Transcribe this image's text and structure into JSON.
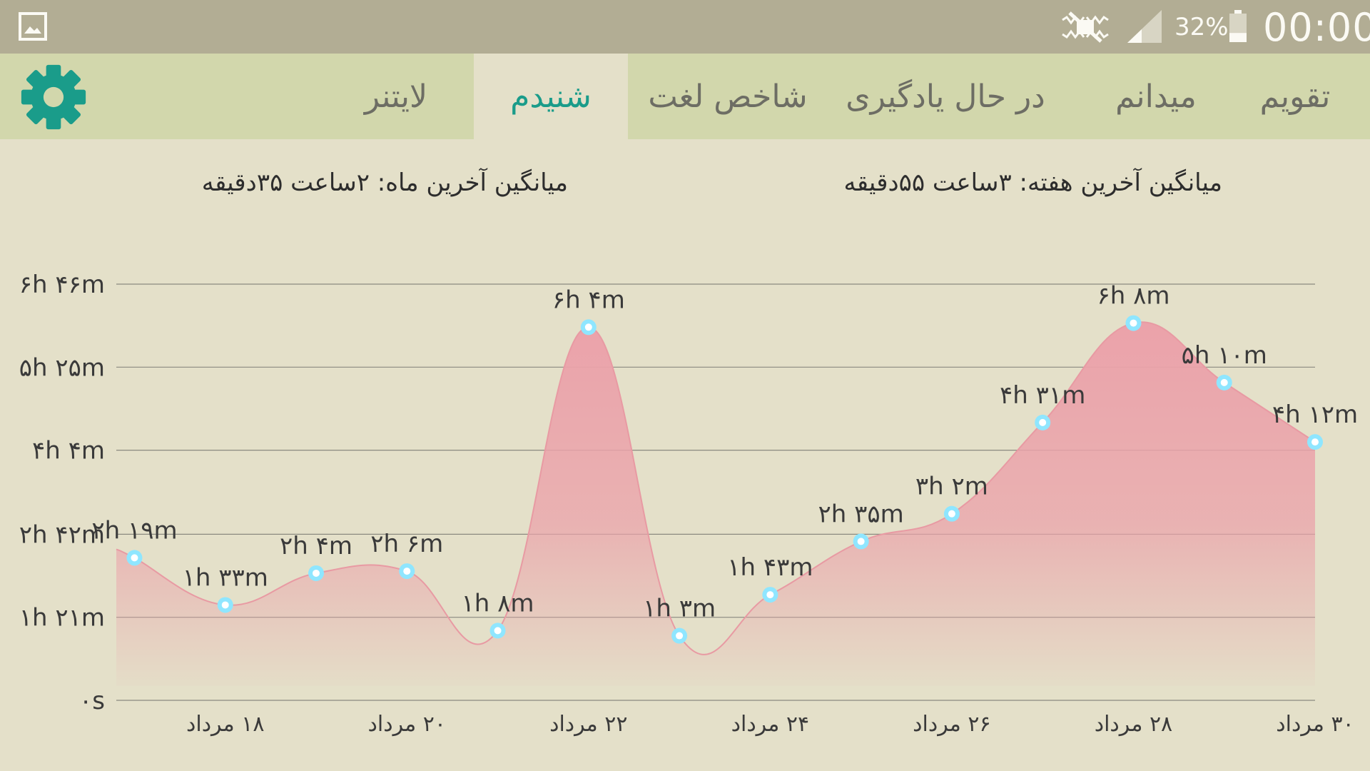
{
  "status_bar": {
    "battery_percent": "32%",
    "battery_level": 0.32,
    "clock": "00:00",
    "icons": [
      "gallery-icon",
      "mute-icon",
      "signal-icon",
      "battery-icon"
    ]
  },
  "tabs": [
    {
      "label": "تقویم",
      "active": false
    },
    {
      "label": "میدانم",
      "active": false
    },
    {
      "label": "در حال یادگیری",
      "active": false
    },
    {
      "label": "شاخص لغت",
      "active": false
    },
    {
      "label": "شنیدم",
      "active": true
    },
    {
      "label": "لایتنر",
      "active": false
    }
  ],
  "settings_icon": "gear-icon",
  "averages": {
    "week": "میانگین آخرین هفته:  ۳ساعت   ۵۵دقیقه",
    "month": "میانگین آخرین ماه:  ۲ساعت   ۳۵دقیقه"
  },
  "colors": {
    "accent": "#1a9c8a",
    "area_fill": "#eba2aa",
    "point": "#8fe6ff",
    "background": "#e4e0c9",
    "tab_bar": "#d2d7ac",
    "status_bar": "#b2ad94"
  },
  "chart_data": {
    "type": "area",
    "y_unit": "minutes",
    "ylim": [
      0,
      406
    ],
    "y_ticks": [
      {
        "value": 0,
        "label": "۰s"
      },
      {
        "value": 81,
        "label": "۱h ۲۱m"
      },
      {
        "value": 162,
        "label": "۲h ۴۲m"
      },
      {
        "value": 244,
        "label": "۴h ۴m"
      },
      {
        "value": 325,
        "label": "۵h ۲۵m"
      },
      {
        "value": 406,
        "label": "۶h ۴۶m"
      }
    ],
    "x_ticks": [
      {
        "day": 18,
        "label": "۱۸ مرداد"
      },
      {
        "day": 20,
        "label": "۲۰ مرداد"
      },
      {
        "day": 22,
        "label": "۲۲ مرداد"
      },
      {
        "day": 24,
        "label": "۲۴ مرداد"
      },
      {
        "day": 26,
        "label": "۲۶ مرداد"
      },
      {
        "day": 28,
        "label": "۲۸ مرداد"
      },
      {
        "day": 30,
        "label": "۳۰ مرداد"
      }
    ],
    "points": [
      {
        "day": 17,
        "value": 139,
        "label": "۲h ۱۹m"
      },
      {
        "day": 18,
        "value": 93,
        "label": "۱h ۳۳m"
      },
      {
        "day": 19,
        "value": 124,
        "label": "۲h ۴m"
      },
      {
        "day": 20,
        "value": 126,
        "label": "۲h ۶m"
      },
      {
        "day": 21,
        "value": 68,
        "label": "۱h ۸m"
      },
      {
        "day": 22,
        "value": 364,
        "label": "۶h ۴m"
      },
      {
        "day": 23,
        "value": 63,
        "label": "۱h ۳m"
      },
      {
        "day": 24,
        "value": 103,
        "label": "۱h ۴۳m"
      },
      {
        "day": 25,
        "value": 155,
        "label": "۲h ۳۵m"
      },
      {
        "day": 26,
        "value": 182,
        "label": "۳h ۲m"
      },
      {
        "day": 27,
        "value": 271,
        "label": "۴h ۳۱m"
      },
      {
        "day": 28,
        "value": 368,
        "label": "۶h ۸m"
      },
      {
        "day": 29,
        "value": 310,
        "label": "۵h ۱۰m"
      },
      {
        "day": 30,
        "value": 252,
        "label": "۴h ۱۲m"
      }
    ],
    "grid": true,
    "legend": "none"
  }
}
